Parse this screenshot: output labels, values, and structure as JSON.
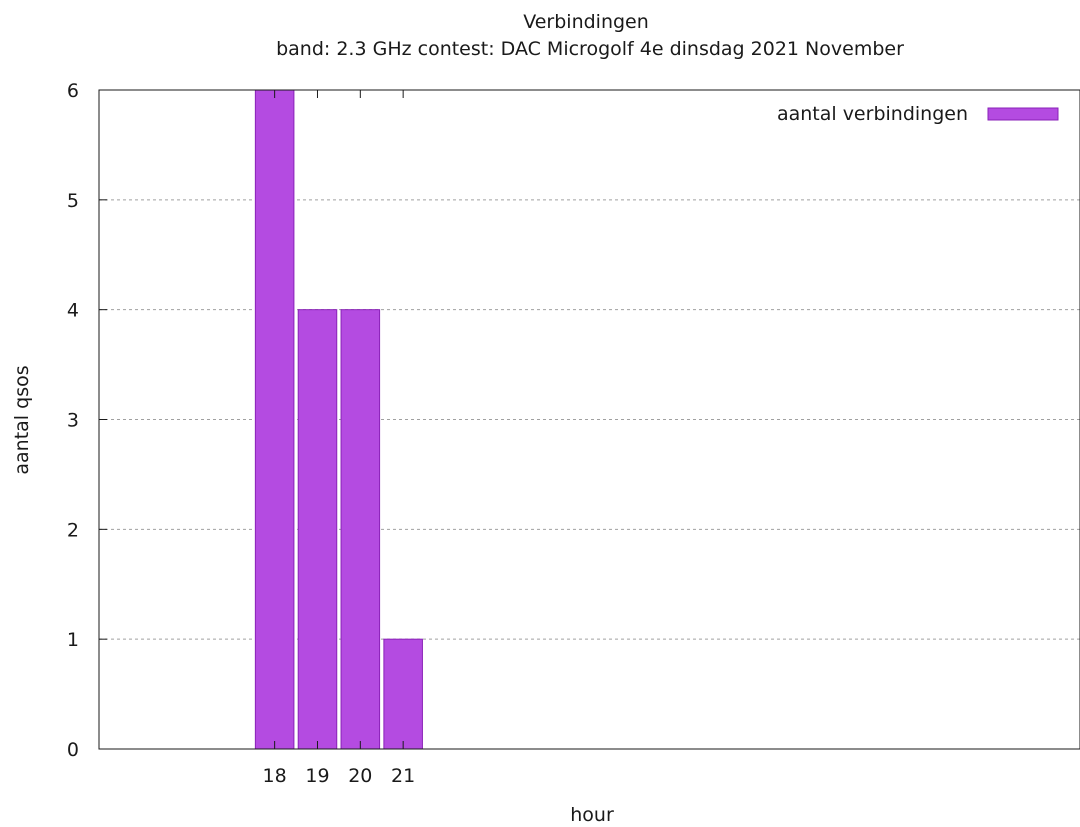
{
  "chart_data": {
    "type": "bar",
    "title": "Verbindingen",
    "subtitle": "band: 2.3 GHz  contest: DAC Microgolf 4e dinsdag 2021 November",
    "xlabel": "hour",
    "ylabel": "aantal qsos",
    "categories": [
      "18",
      "19",
      "20",
      "21"
    ],
    "series": [
      {
        "name": "aantal verbindingen",
        "values": [
          6,
          4,
          4,
          1
        ]
      }
    ],
    "ylim": [
      0,
      6
    ],
    "yticks": [
      "0",
      "1",
      "2",
      "3",
      "4",
      "5",
      "6"
    ],
    "grid": true,
    "legend": "top-right",
    "colors": {
      "bar": "#b44be1",
      "bar_edge": "#8a22b8"
    }
  }
}
